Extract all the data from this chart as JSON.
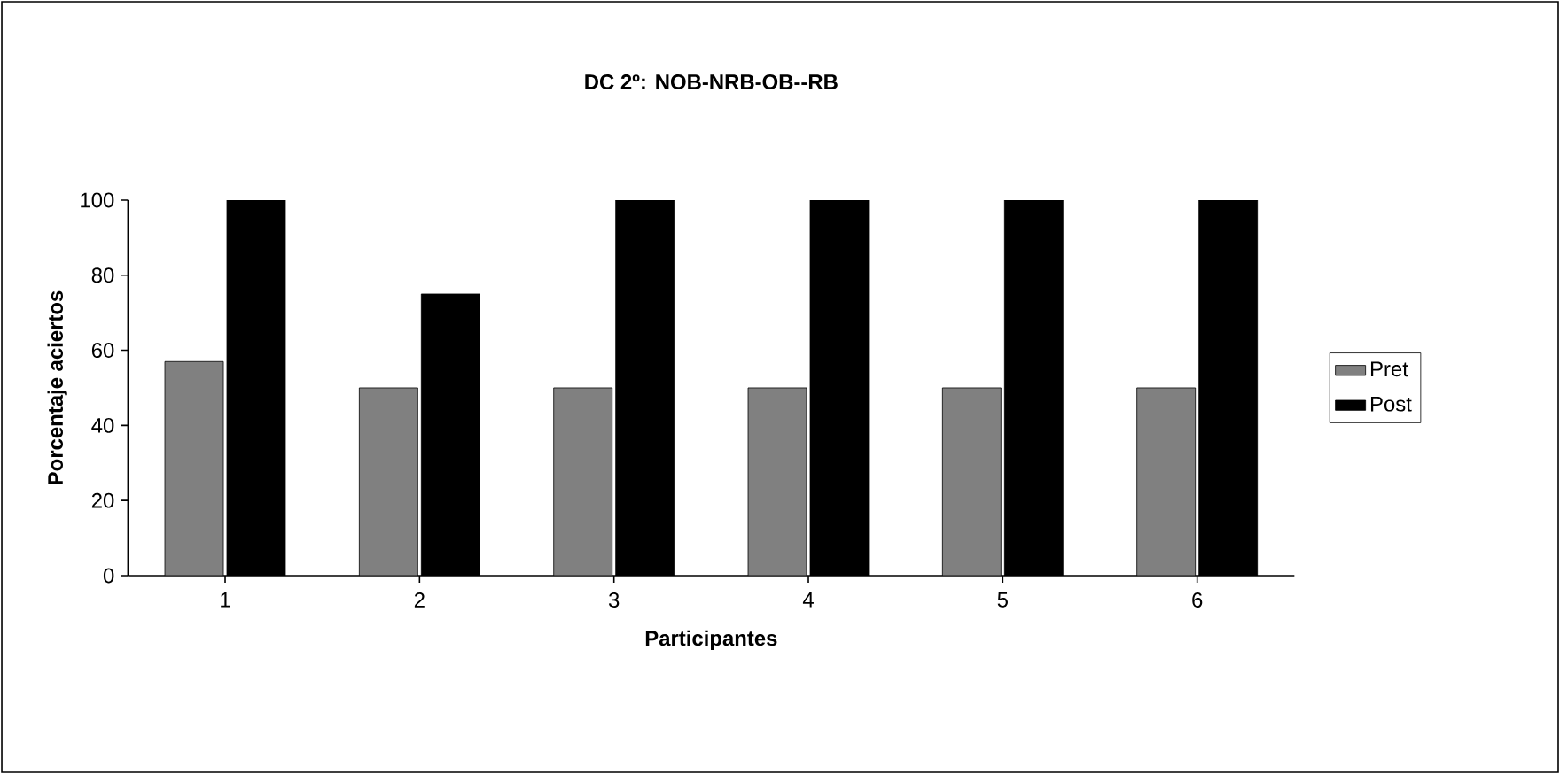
{
  "chart_data": {
    "type": "bar",
    "title": "DC 2º: NOB-NRB-OB--RB",
    "xlabel": "Participantes",
    "ylabel": "Porcentaje aciertos",
    "categories": [
      "1",
      "2",
      "3",
      "4",
      "5",
      "6"
    ],
    "series": [
      {
        "name": "Pret",
        "color": "#808080",
        "values": [
          57,
          50,
          50,
          50,
          50,
          50
        ]
      },
      {
        "name": "Post",
        "color": "#000000",
        "values": [
          100,
          75,
          100,
          100,
          100,
          100
        ]
      }
    ],
    "ylim": [
      0,
      100
    ],
    "yticks": [
      0,
      20,
      40,
      60,
      80,
      100
    ],
    "grid": false,
    "legend": "right"
  }
}
